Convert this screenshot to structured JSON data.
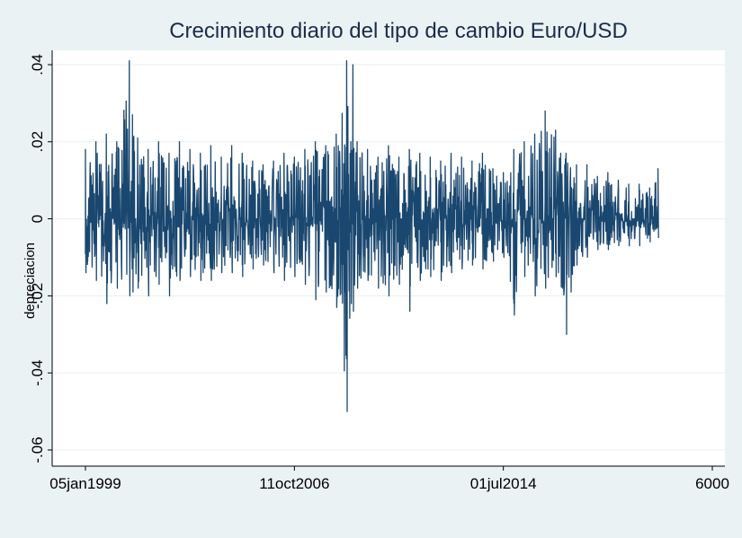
{
  "chart_data": {
    "type": "line",
    "title": "Crecimiento diario del tipo de cambio Euro/USD",
    "xlabel": "",
    "ylabel": "depreciacion",
    "x_ticks": [
      {
        "value": 0,
        "label": "05jan1999"
      },
      {
        "value": 2000,
        "label": "11oct2006"
      },
      {
        "value": 4000,
        "label": "01jul2014"
      },
      {
        "value": 6000,
        "label": "6000"
      }
    ],
    "y_ticks": [
      {
        "value": 0.04,
        "label": ".04"
      },
      {
        "value": 0.02,
        "label": ".02"
      },
      {
        "value": 0,
        "label": "0"
      },
      {
        "value": -0.02,
        "label": "-.02"
      },
      {
        "value": -0.04,
        "label": "-.04"
      },
      {
        "value": -0.06,
        "label": "-.06"
      }
    ],
    "xlim": [
      0,
      6000
    ],
    "ylim": [
      -0.06,
      0.04
    ],
    "grid": true,
    "series_color": "#1a476f",
    "series": [
      {
        "x": [
          0,
          100,
          200,
          300,
          420,
          450,
          500,
          600,
          700,
          800,
          900,
          1000,
          1100,
          1200,
          1300,
          1400,
          1500,
          1600,
          1700,
          1800,
          1900,
          2000,
          2100,
          2200,
          2300,
          2400,
          2500,
          2540,
          2560,
          2600,
          2700,
          2800,
          2900,
          3000,
          3100,
          3200,
          3300,
          3400,
          3500,
          3600,
          3700,
          3800,
          3900,
          4000,
          4100,
          4200,
          4300,
          4400,
          4500,
          4600,
          4700,
          4800,
          4900,
          5000,
          5100,
          5200,
          5300,
          5400,
          5480
        ],
        "high": [
          0.018,
          0.02,
          0.022,
          0.02,
          0.041,
          0.027,
          0.021,
          0.018,
          0.02,
          0.017,
          0.02,
          0.018,
          0.017,
          0.019,
          0.016,
          0.019,
          0.017,
          0.015,
          0.014,
          0.015,
          0.017,
          0.016,
          0.018,
          0.02,
          0.019,
          0.022,
          0.041,
          0.02,
          0.04,
          0.02,
          0.018,
          0.016,
          0.019,
          0.016,
          0.018,
          0.017,
          0.016,
          0.015,
          0.017,
          0.016,
          0.015,
          0.017,
          0.013,
          0.012,
          0.018,
          0.02,
          0.022,
          0.028,
          0.023,
          0.017,
          0.014,
          0.014,
          0.011,
          0.012,
          0.01,
          0.009,
          0.009,
          0.008,
          0.013
        ],
        "low": [
          -0.014,
          -0.016,
          -0.022,
          -0.018,
          -0.02,
          -0.019,
          -0.018,
          -0.02,
          -0.017,
          -0.02,
          -0.016,
          -0.015,
          -0.016,
          -0.016,
          -0.014,
          -0.014,
          -0.015,
          -0.013,
          -0.012,
          -0.014,
          -0.016,
          -0.015,
          -0.017,
          -0.021,
          -0.019,
          -0.023,
          -0.05,
          -0.022,
          -0.024,
          -0.018,
          -0.016,
          -0.018,
          -0.02,
          -0.017,
          -0.024,
          -0.016,
          -0.015,
          -0.016,
          -0.014,
          -0.013,
          -0.012,
          -0.013,
          -0.011,
          -0.01,
          -0.025,
          -0.015,
          -0.02,
          -0.018,
          -0.015,
          -0.03,
          -0.012,
          -0.01,
          -0.008,
          -0.008,
          -0.007,
          -0.007,
          -0.007,
          -0.006,
          -0.005
        ]
      }
    ]
  }
}
